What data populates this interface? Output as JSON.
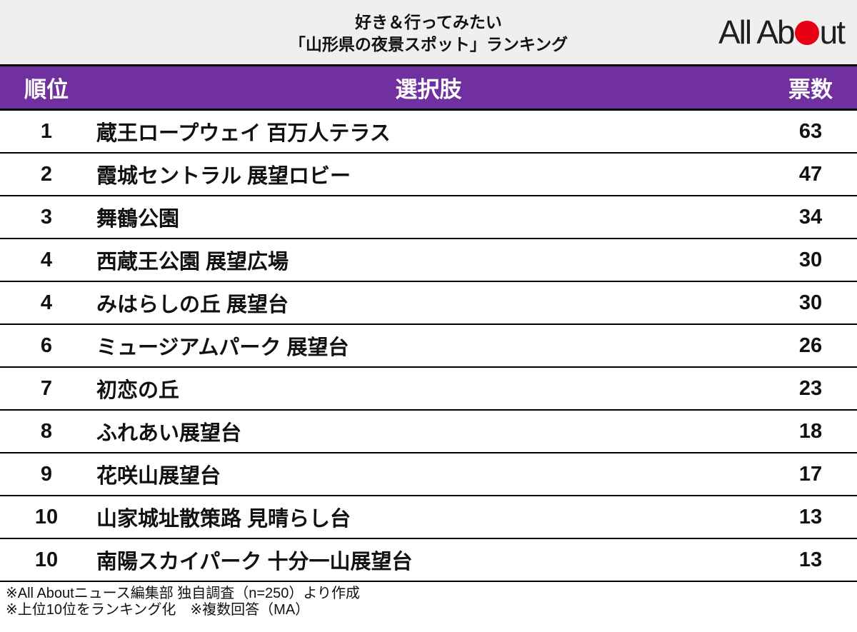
{
  "header": {
    "title_line1": "好き＆行ってみたい",
    "title_line2": "「山形県の夜景スポット」ランキング",
    "logo_left": "All Ab",
    "logo_right": "ut"
  },
  "table": {
    "columns": {
      "rank": "順位",
      "choice": "選択肢",
      "votes": "票数"
    },
    "rows": [
      {
        "rank": "1",
        "choice": "蔵王ロープウェイ 百万人テラス",
        "votes": "63"
      },
      {
        "rank": "2",
        "choice": "霞城セントラル 展望ロビー",
        "votes": "47"
      },
      {
        "rank": "3",
        "choice": "舞鶴公園",
        "votes": "34"
      },
      {
        "rank": "4",
        "choice": "西蔵王公園 展望広場",
        "votes": "30"
      },
      {
        "rank": "4",
        "choice": "みはらしの丘 展望台",
        "votes": "30"
      },
      {
        "rank": "6",
        "choice": "ミュージアムパーク 展望台",
        "votes": "26"
      },
      {
        "rank": "7",
        "choice": "初恋の丘",
        "votes": "23"
      },
      {
        "rank": "8",
        "choice": "ふれあい展望台",
        "votes": "18"
      },
      {
        "rank": "9",
        "choice": "花咲山展望台",
        "votes": "17"
      },
      {
        "rank": "10",
        "choice": "山家城址散策路 見晴らし台",
        "votes": "13"
      },
      {
        "rank": "10",
        "choice": "南陽スカイパーク 十分一山展望台",
        "votes": "13"
      }
    ]
  },
  "footer": {
    "note1": "※All Aboutニュース編集部 独自調査（n=250）より作成",
    "note2": "※上位10位をランキング化　※複数回答（MA）"
  },
  "colors": {
    "accent_purple": "#7030a0",
    "logo_red": "#e60012",
    "banner_gray": "#efefef",
    "border_black": "#000000"
  },
  "chart_data": {
    "type": "table",
    "title": "好き＆行ってみたい「山形県の夜景スポット」ランキング",
    "columns": [
      "順位",
      "選択肢",
      "票数"
    ],
    "rows": [
      [
        1,
        "蔵王ロープウェイ 百万人テラス",
        63
      ],
      [
        2,
        "霞城セントラル 展望ロビー",
        47
      ],
      [
        3,
        "舞鶴公園",
        34
      ],
      [
        4,
        "西蔵王公園 展望広場",
        30
      ],
      [
        4,
        "みはらしの丘 展望台",
        30
      ],
      [
        6,
        "ミュージアムパーク 展望台",
        26
      ],
      [
        7,
        "初恋の丘",
        23
      ],
      [
        8,
        "ふれあい展望台",
        18
      ],
      [
        9,
        "花咲山展望台",
        17
      ],
      [
        10,
        "山家城址散策路 見晴らし台",
        13
      ],
      [
        10,
        "南陽スカイパーク 十分一山展望台",
        13
      ]
    ],
    "source_note": "※All Aboutニュース編集部 独自調査（n=250）より作成",
    "method_note": "※上位10位をランキング化　※複数回答（MA）"
  }
}
